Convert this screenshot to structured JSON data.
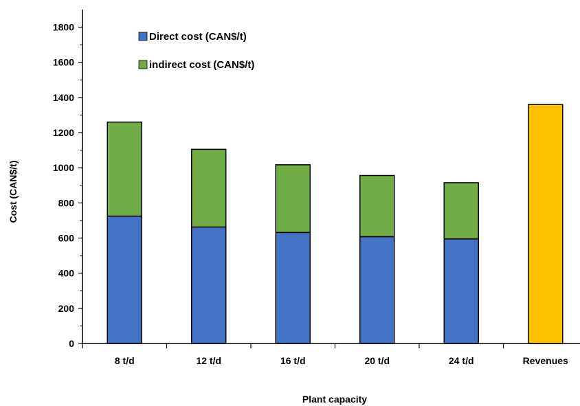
{
  "chart_data": {
    "type": "bar",
    "stacked": true,
    "categories": [
      "8 t/d",
      "12 t/d",
      "16 t/d",
      "20 t/d",
      "24 t/d",
      "Revenues"
    ],
    "series": [
      {
        "name": "Direct cost (CAN$/t)",
        "color": "#4472C4",
        "values": [
          725,
          663,
          632,
          608,
          595,
          null
        ]
      },
      {
        "name": "indirect cost (CAN$/t)",
        "color": "#70AD47",
        "values": [
          535,
          442,
          385,
          348,
          320,
          null
        ]
      },
      {
        "name": "",
        "color": "#FFC000",
        "values": [
          null,
          null,
          null,
          null,
          null,
          1360
        ]
      }
    ],
    "title": "",
    "xlabel": "Plant capacity",
    "ylabel": "Cost (CAN$/t)",
    "ylim": [
      0,
      1900
    ],
    "yticks": [
      0,
      200,
      400,
      600,
      800,
      1000,
      1200,
      1400,
      1600,
      1800
    ],
    "grid": false,
    "legend": {
      "placement": "top-left",
      "entries": [
        "Direct cost (CAN$/t)",
        "indirect cost (CAN$/t)"
      ]
    }
  }
}
